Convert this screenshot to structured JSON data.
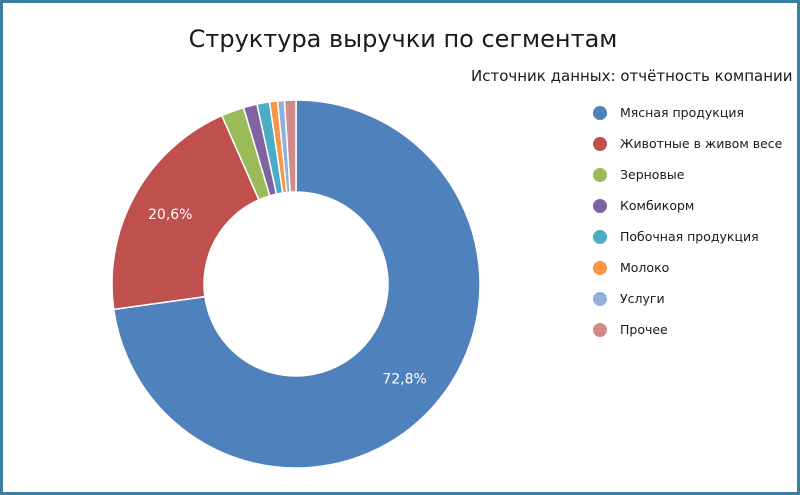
{
  "chart_data": {
    "type": "pie",
    "variant": "donut",
    "title": "Структура выручки по сегментам",
    "subtitle": "Источник данных: отчётность компании",
    "legend_position": "right",
    "slices": [
      {
        "name": "Мясная продукция",
        "value": 72.8,
        "color": "#4f81bd",
        "label": "72,8%"
      },
      {
        "name": "Животные в живом весе",
        "value": 20.6,
        "color": "#c0504d",
        "label": "20,6%"
      },
      {
        "name": "Зерновые",
        "value": 2.0,
        "color": "#9bbb59",
        "label": ""
      },
      {
        "name": "Комбикорм",
        "value": 1.2,
        "color": "#8064a2",
        "label": ""
      },
      {
        "name": "Побочная продукция",
        "value": 1.1,
        "color": "#4bacc6",
        "label": ""
      },
      {
        "name": "Молоко",
        "value": 0.7,
        "color": "#f79646",
        "label": ""
      },
      {
        "name": "Услуги",
        "value": 0.6,
        "color": "#8fb0d9",
        "label": ""
      },
      {
        "name": "Прочее",
        "value": 1.0,
        "color": "#d08c8a",
        "label": ""
      }
    ]
  }
}
